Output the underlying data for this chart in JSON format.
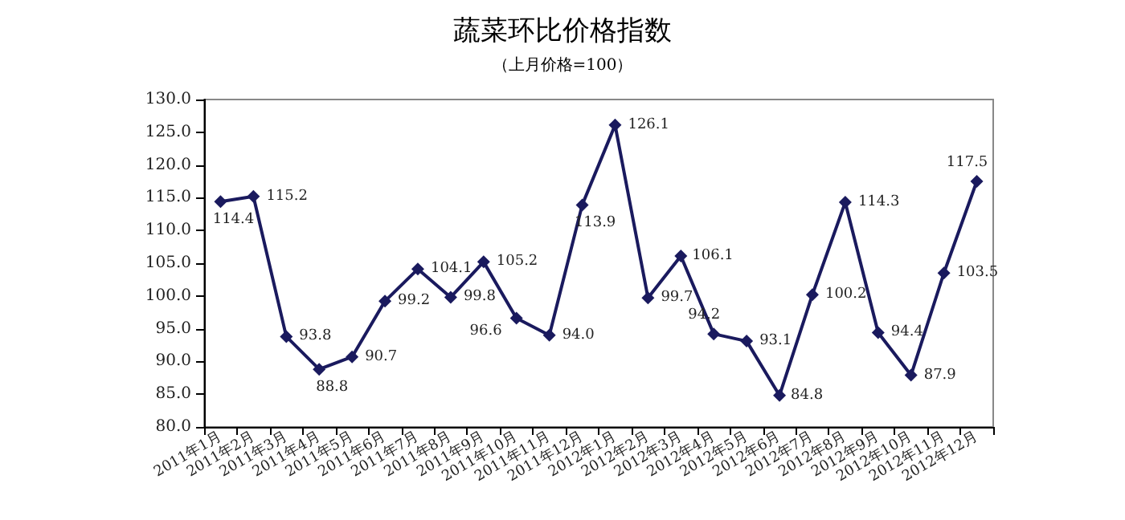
{
  "chart_data": {
    "type": "line",
    "title": "蔬菜环比价格指数",
    "subtitle": "（上月价格=100）",
    "categories": [
      "2011年1月",
      "2011年2月",
      "2011年3月",
      "2011年4月",
      "2011年5月",
      "2011年6月",
      "2011年7月",
      "2011年8月",
      "2011年9月",
      "2011年10月",
      "2011年11月",
      "2011年12月",
      "2012年1月",
      "2012年2月",
      "2012年3月",
      "2012年4月",
      "2012年5月",
      "2012年6月",
      "2012年7月",
      "2012年8月",
      "2012年9月",
      "2012年10月",
      "2012年11月",
      "2012年12月"
    ],
    "series": [
      {
        "color": "#1a1a5e",
        "values": [
          114.4,
          115.2,
          93.8,
          88.8,
          90.7,
          99.2,
          104.1,
          99.8,
          105.2,
          96.6,
          94.0,
          113.9,
          126.1,
          99.7,
          106.1,
          94.2,
          93.1,
          84.8,
          100.2,
          114.3,
          94.4,
          87.9,
          103.5,
          117.5
        ],
        "value_labels": [
          "114.4",
          "115.2",
          "93.8",
          "88.8",
          "90.7",
          "99.2",
          "104.1",
          "99.8",
          "105.2",
          "96.6",
          "94.0",
          "113.9",
          "126.1",
          "99.7",
          "106.1",
          "94.2",
          "93.1",
          "84.8",
          "100.2",
          "114.3",
          "94.4",
          "87.9",
          "103.5",
          "117.5"
        ]
      }
    ],
    "ylim": [
      80,
      130
    ],
    "yticks": [
      {
        "value": 80,
        "label": "80.0"
      },
      {
        "value": 85,
        "label": "85.0"
      },
      {
        "value": 90,
        "label": "90.0"
      },
      {
        "value": 95,
        "label": "95.0"
      },
      {
        "value": 100,
        "label": "100.0"
      },
      {
        "value": 105,
        "label": "105.0"
      },
      {
        "value": 110,
        "label": "110.0"
      },
      {
        "value": 115,
        "label": "115.0"
      },
      {
        "value": 120,
        "label": "120.0"
      },
      {
        "value": 125,
        "label": "125.0"
      },
      {
        "value": 130,
        "label": "130.0"
      }
    ],
    "grid": false,
    "marker": "diamond",
    "line_style": "solid"
  }
}
